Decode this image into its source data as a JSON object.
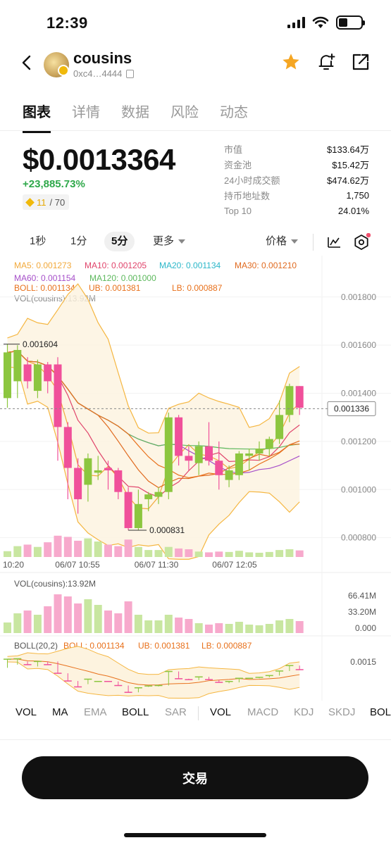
{
  "status_bar": {
    "time": "12:39"
  },
  "header": {
    "token_name": "cousins",
    "address": "0xc4…4444",
    "icons": [
      "back-icon",
      "star-icon",
      "bell-add-icon",
      "share-icon"
    ]
  },
  "tabs": [
    {
      "label": "图表",
      "active": true
    },
    {
      "label": "详情",
      "active": false
    },
    {
      "label": "数据",
      "active": false
    },
    {
      "label": "风险",
      "active": false
    },
    {
      "label": "动态",
      "active": false
    }
  ],
  "price": {
    "value": "$0.0013364",
    "change": "+23,885.73%",
    "rank_num": "11",
    "rank_total": "/ 70"
  },
  "stats": [
    {
      "label": "市值",
      "value": "$133.64万"
    },
    {
      "label": "资金池",
      "value": "$15.42万"
    },
    {
      "label": "24小时成交额",
      "value": "$474.62万"
    },
    {
      "label": "持币地址数",
      "value": "1,750"
    },
    {
      "label": "Top 10",
      "value": "24.01%"
    }
  ],
  "toolbar": {
    "intervals": [
      "1秒",
      "1分",
      "5分"
    ],
    "active_interval": "5分",
    "more": "更多",
    "price_mode": "价格"
  },
  "legend": {
    "ma5": "MA5: 0.001273",
    "ma10": "MA10: 0.001205",
    "ma20": "MA20: 0.001134",
    "ma30": "MA30: 0.001210",
    "ma60": "MA60: 0.001154",
    "ma120": "MA120: 0.001000",
    "boll": "BOLL: 0.001134",
    "ub": "UB: 0.001381",
    "lb": "LB: 0.000887",
    "vol": "VOL(cousins):13.92M"
  },
  "colors": {
    "up": "#8cc63f",
    "down": "#f0509a",
    "ma5": "#f2a93b",
    "ma10": "#e0446b",
    "ma20": "#2bb7c9",
    "ma30": "#e06a1f",
    "ma60": "#a64fc9",
    "ma120": "#5cb85c",
    "boll": "#e8711c",
    "band": "#f5b640"
  },
  "chart_data": {
    "type": "candlestick",
    "title": "",
    "y_axis_ticks": [
      "0.001800",
      "0.001600",
      "0.001400",
      "0.001200",
      "0.001000",
      "0.000800"
    ],
    "ylim": [
      0.00072,
      0.00189
    ],
    "x_axis_ticks": [
      "10:20",
      "06/07 10:55",
      "06/07 11:30",
      "06/07 12:05"
    ],
    "current_price_label": "0.001336",
    "high_label": "0.001604",
    "low_label": "0.000831",
    "candles": [
      {
        "o": 0.00138,
        "h": 0.001604,
        "l": 0.00134,
        "c": 0.00157
      },
      {
        "o": 0.00145,
        "h": 0.0016,
        "l": 0.00138,
        "c": 0.00158
      },
      {
        "o": 0.00152,
        "h": 0.00155,
        "l": 0.00142,
        "c": 0.00145
      },
      {
        "o": 0.00141,
        "h": 0.00154,
        "l": 0.00138,
        "c": 0.00152
      },
      {
        "o": 0.00152,
        "h": 0.00153,
        "l": 0.0014,
        "c": 0.00145
      },
      {
        "o": 0.00152,
        "h": 0.00155,
        "l": 0.00112,
        "c": 0.00126
      },
      {
        "o": 0.00126,
        "h": 0.00128,
        "l": 0.00096,
        "c": 0.00109
      },
      {
        "o": 0.00109,
        "h": 0.00113,
        "l": 0.0009,
        "c": 0.00096
      },
      {
        "o": 0.00102,
        "h": 0.00115,
        "l": 0.00095,
        "c": 0.00113
      },
      {
        "o": 0.00107,
        "h": 0.00114,
        "l": 0.00104,
        "c": 0.00108
      },
      {
        "o": 0.00109,
        "h": 0.00112,
        "l": 0.001,
        "c": 0.00108
      },
      {
        "o": 0.00108,
        "h": 0.00109,
        "l": 0.00096,
        "c": 0.00099
      },
      {
        "o": 0.00099,
        "h": 0.00101,
        "l": 0.000831,
        "c": 0.00084
      },
      {
        "o": 0.00084,
        "h": 0.001,
        "l": 0.00083,
        "c": 0.00094
      },
      {
        "o": 0.00096,
        "h": 0.00099,
        "l": 0.00091,
        "c": 0.00098
      },
      {
        "o": 0.00097,
        "h": 0.00101,
        "l": 0.00094,
        "c": 0.00099
      },
      {
        "o": 0.00099,
        "h": 0.00132,
        "l": 0.00096,
        "c": 0.0013
      },
      {
        "o": 0.0013,
        "h": 0.00131,
        "l": 0.0011,
        "c": 0.00114
      },
      {
        "o": 0.00114,
        "h": 0.00118,
        "l": 0.00108,
        "c": 0.00112
      },
      {
        "o": 0.00111,
        "h": 0.0012,
        "l": 0.00106,
        "c": 0.00118
      },
      {
        "o": 0.00118,
        "h": 0.00128,
        "l": 0.0011,
        "c": 0.00112
      },
      {
        "o": 0.00112,
        "h": 0.0012,
        "l": 0.001,
        "c": 0.00106
      },
      {
        "o": 0.00104,
        "h": 0.0011,
        "l": 0.00101,
        "c": 0.00108
      },
      {
        "o": 0.00106,
        "h": 0.00116,
        "l": 0.00104,
        "c": 0.00115
      },
      {
        "o": 0.00114,
        "h": 0.00117,
        "l": 0.00108,
        "c": 0.00115
      },
      {
        "o": 0.00115,
        "h": 0.0012,
        "l": 0.00112,
        "c": 0.00117
      },
      {
        "o": 0.00117,
        "h": 0.00122,
        "l": 0.00114,
        "c": 0.00121
      },
      {
        "o": 0.00121,
        "h": 0.00137,
        "l": 0.00119,
        "c": 0.00131
      },
      {
        "o": 0.00131,
        "h": 0.00144,
        "l": 0.00128,
        "c": 0.00143
      },
      {
        "o": 0.00143,
        "h": 0.00143,
        "l": 0.00131,
        "c": 0.00134
      }
    ],
    "volume": [
      0.15,
      0.28,
      0.32,
      0.26,
      0.38,
      0.55,
      0.52,
      0.42,
      0.48,
      0.4,
      0.32,
      0.28,
      0.45,
      0.26,
      0.18,
      0.18,
      0.26,
      0.22,
      0.2,
      0.14,
      0.12,
      0.14,
      0.13,
      0.16,
      0.12,
      0.11,
      0.13,
      0.18,
      0.2,
      0.17
    ],
    "vol_panel": {
      "label": "VOL(cousins):13.92M",
      "ticks": [
        "66.41M",
        "33.20M",
        "0.000"
      ]
    },
    "boll_panel": {
      "label": "BOLL(20,2)",
      "boll": "BOLL: 0.001134",
      "ub": "UB: 0.001381",
      "lb": "LB: 0.000887",
      "tick": "0.0015"
    }
  },
  "indicators": [
    {
      "label": "VOL",
      "active": true
    },
    {
      "label": "MA",
      "active": true
    },
    {
      "label": "EMA",
      "active": false
    },
    {
      "label": "BOLL",
      "active": true
    },
    {
      "label": "SAR",
      "active": false
    },
    {
      "label": "VOL",
      "active": true
    },
    {
      "label": "MACD",
      "active": false
    },
    {
      "label": "KDJ",
      "active": false
    },
    {
      "label": "SKDJ",
      "active": false
    },
    {
      "label": "BOL",
      "active": true
    }
  ],
  "trade_button": "交易"
}
